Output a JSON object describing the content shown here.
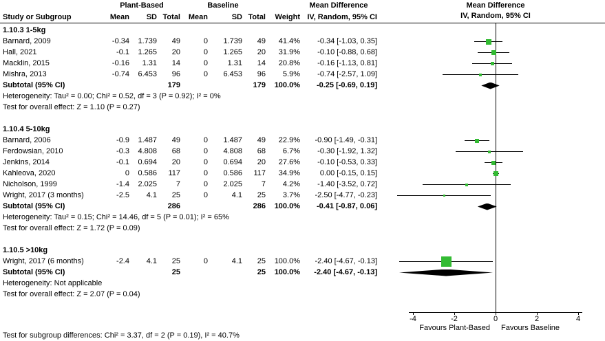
{
  "chart_data": {
    "type": "forest",
    "effect_label": "Mean Difference",
    "method_label": "IV, Random, 95% CI",
    "group_labels": {
      "experimental": "Plant-Based",
      "control": "Baseline"
    },
    "columns": [
      "Study or Subgroup",
      "Mean",
      "SD",
      "Total",
      "Mean",
      "SD",
      "Total",
      "Weight",
      "IV, Random, 95% CI"
    ],
    "marker_color": "#33bb33",
    "diamond_color": "#000000",
    "axis": {
      "min": -4,
      "max": 4,
      "ticks": [
        -4,
        -2,
        0,
        2,
        4
      ],
      "left_label": "Favours Plant-Based",
      "right_label": "Favours Baseline"
    },
    "subgroups": [
      {
        "title": "1.10.3 1-5kg",
        "studies": [
          {
            "study": "Barnard, 2009",
            "mean1": "-0.34",
            "sd1": "1.739",
            "total1": "49",
            "mean2": "0",
            "sd2": "1.739",
            "total2": "49",
            "weight": "41.4%",
            "ci_text": "-0.34 [-1.03, 0.35]",
            "est": -0.34,
            "lo": -1.03,
            "hi": 0.35
          },
          {
            "study": "Hall, 2021",
            "mean1": "-0.1",
            "sd1": "1.265",
            "total1": "20",
            "mean2": "0",
            "sd2": "1.265",
            "total2": "20",
            "weight": "31.9%",
            "ci_text": "-0.10 [-0.88, 0.68]",
            "est": -0.1,
            "lo": -0.88,
            "hi": 0.68
          },
          {
            "study": "Macklin, 2015",
            "mean1": "-0.16",
            "sd1": "1.31",
            "total1": "14",
            "mean2": "0",
            "sd2": "1.31",
            "total2": "14",
            "weight": "20.8%",
            "ci_text": "-0.16 [-1.13, 0.81]",
            "est": -0.16,
            "lo": -1.13,
            "hi": 0.81
          },
          {
            "study": "Mishra, 2013",
            "mean1": "-0.74",
            "sd1": "6.453",
            "total1": "96",
            "mean2": "0",
            "sd2": "6.453",
            "total2": "96",
            "weight": "5.9%",
            "ci_text": "-0.74 [-2.57, 1.09]",
            "est": -0.74,
            "lo": -2.57,
            "hi": 1.09
          }
        ],
        "subtotal": {
          "label": "Subtotal (95% CI)",
          "total1": "179",
          "total2": "179",
          "weight": "100.0%",
          "ci_text": "-0.25 [-0.69, 0.19]",
          "est": -0.25,
          "lo": -0.69,
          "hi": 0.19
        },
        "heterogeneity": "Heterogeneity: Tau² = 0.00; Chi² = 0.52, df = 3 (P = 0.92); I² = 0%",
        "overall_effect": "Test for overall effect: Z = 1.10 (P = 0.27)"
      },
      {
        "title": "1.10.4 5-10kg",
        "studies": [
          {
            "study": "Barnard, 2006",
            "mean1": "-0.9",
            "sd1": "1.487",
            "total1": "49",
            "mean2": "0",
            "sd2": "1.487",
            "total2": "49",
            "weight": "22.9%",
            "ci_text": "-0.90 [-1.49, -0.31]",
            "est": -0.9,
            "lo": -1.49,
            "hi": -0.31
          },
          {
            "study": "Ferdowsian, 2010",
            "mean1": "-0.3",
            "sd1": "4.808",
            "total1": "68",
            "mean2": "0",
            "sd2": "4.808",
            "total2": "68",
            "weight": "6.7%",
            "ci_text": "-0.30 [-1.92, 1.32]",
            "est": -0.3,
            "lo": -1.92,
            "hi": 1.32
          },
          {
            "study": "Jenkins, 2014",
            "mean1": "-0.1",
            "sd1": "0.694",
            "total1": "20",
            "mean2": "0",
            "sd2": "0.694",
            "total2": "20",
            "weight": "27.6%",
            "ci_text": "-0.10 [-0.53, 0.33]",
            "est": -0.1,
            "lo": -0.53,
            "hi": 0.33
          },
          {
            "study": "Kahleova, 2020",
            "mean1": "0",
            "sd1": "0.586",
            "total1": "117",
            "mean2": "0",
            "sd2": "0.586",
            "total2": "117",
            "weight": "34.9%",
            "ci_text": "0.00 [-0.15, 0.15]",
            "est": 0.0,
            "lo": -0.15,
            "hi": 0.15
          },
          {
            "study": "Nicholson, 1999",
            "mean1": "-1.4",
            "sd1": "2.025",
            "total1": "7",
            "mean2": "0",
            "sd2": "2.025",
            "total2": "7",
            "weight": "4.2%",
            "ci_text": "-1.40 [-3.52, 0.72]",
            "est": -1.4,
            "lo": -3.52,
            "hi": 0.72
          },
          {
            "study": "Wright, 2017 (3 months)",
            "mean1": "-2.5",
            "sd1": "4.1",
            "total1": "25",
            "mean2": "0",
            "sd2": "4.1",
            "total2": "25",
            "weight": "3.7%",
            "ci_text": "-2.50 [-4.77, -0.23]",
            "est": -2.5,
            "lo": -4.77,
            "hi": -0.23
          }
        ],
        "subtotal": {
          "label": "Subtotal (95% CI)",
          "total1": "286",
          "total2": "286",
          "weight": "100.0%",
          "ci_text": "-0.41 [-0.87, 0.06]",
          "est": -0.41,
          "lo": -0.87,
          "hi": 0.06
        },
        "heterogeneity": "Heterogeneity: Tau² = 0.15; Chi² = 14.46, df = 5 (P = 0.01); I² = 65%",
        "overall_effect": "Test for overall effect: Z = 1.72 (P = 0.09)"
      },
      {
        "title": "1.10.5 >10kg",
        "studies": [
          {
            "study": "Wright, 2017 (6 months)",
            "mean1": "-2.4",
            "sd1": "4.1",
            "total1": "25",
            "mean2": "0",
            "sd2": "4.1",
            "total2": "25",
            "weight": "100.0%",
            "ci_text": "-2.40 [-4.67, -0.13]",
            "est": -2.4,
            "lo": -4.67,
            "hi": -0.13
          }
        ],
        "subtotal": {
          "label": "Subtotal (95% CI)",
          "total1": "25",
          "total2": "25",
          "weight": "100.0%",
          "ci_text": "-2.40 [-4.67, -0.13]",
          "est": -2.4,
          "lo": -4.67,
          "hi": -0.13
        },
        "heterogeneity": "Heterogeneity: Not applicable",
        "overall_effect": "Test for overall effect: Z = 2.07 (P = 0.04)"
      }
    ],
    "footer": "Test for subgroup differences: Chi² = 3.37, df = 2 (P = 0.19), I² = 40.7%"
  }
}
